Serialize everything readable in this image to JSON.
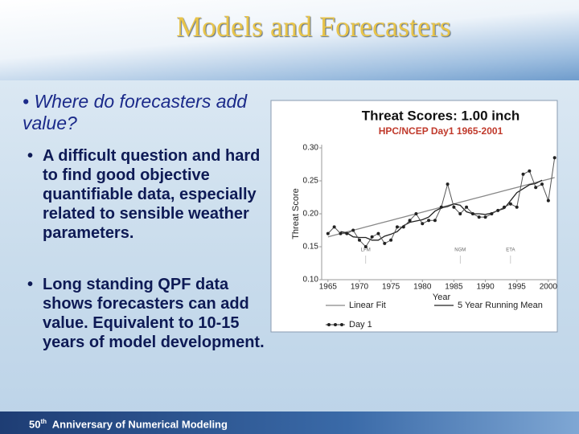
{
  "title": "Models and Forecasters",
  "question": "Where do forecasters add value?",
  "bullets": [
    "A difficult question and hard to find good objective quantifiable data, especially related to sensible weather parameters.",
    "Long standing QPF data shows forecasters can add value. Equivalent to 10-15 years of model development."
  ],
  "footer": {
    "number": "50",
    "suffix": "th",
    "text": "Anniversary of Numerical Modeling"
  },
  "chart_data": {
    "type": "line",
    "title": "Threat Scores: 1.00 inch",
    "subtitle": "HPC/NCEP Day1 1965-2001",
    "x_label": "Year",
    "y_label": "Threat Score",
    "x": [
      1965,
      1966,
      1967,
      1968,
      1969,
      1970,
      1971,
      1972,
      1973,
      1974,
      1975,
      1976,
      1977,
      1978,
      1979,
      1980,
      1981,
      1982,
      1983,
      1984,
      1985,
      1986,
      1987,
      1988,
      1989,
      1990,
      1991,
      1992,
      1993,
      1994,
      1995,
      1996,
      1997,
      1998,
      1999,
      2000,
      2001
    ],
    "series": [
      {
        "name": "Linear Fit",
        "color": "#888888",
        "values": [
          0.165,
          0.1675,
          0.17,
          0.1725,
          0.175,
          0.1775,
          0.18,
          0.1825,
          0.185,
          0.1875,
          0.19,
          0.1925,
          0.195,
          0.1975,
          0.2,
          0.2025,
          0.205,
          0.2075,
          0.21,
          0.2125,
          0.215,
          0.2175,
          0.22,
          0.2225,
          0.225,
          0.2275,
          0.23,
          0.2325,
          0.235,
          0.2375,
          0.24,
          0.2425,
          0.245,
          0.2475,
          0.25,
          0.2525,
          0.255
        ]
      },
      {
        "name": "5 Year Running Mean",
        "color": "#222222",
        "values": [
          null,
          null,
          0.173,
          0.171,
          0.165,
          0.164,
          0.164,
          0.16,
          0.16,
          0.166,
          0.169,
          0.173,
          0.182,
          0.187,
          0.189,
          0.191,
          0.195,
          0.204,
          0.209,
          0.211,
          0.215,
          0.213,
          0.203,
          0.2,
          0.2,
          0.199,
          0.201,
          0.205,
          0.208,
          0.22,
          0.232,
          0.238,
          0.244,
          0.246,
          0.251,
          null,
          null
        ]
      },
      {
        "name": "Day 1",
        "color": "#555555",
        "values": [
          0.17,
          0.18,
          0.17,
          0.17,
          0.175,
          0.16,
          0.15,
          0.165,
          0.17,
          0.155,
          0.16,
          0.18,
          0.18,
          0.19,
          0.2,
          0.185,
          0.19,
          0.19,
          0.21,
          0.245,
          0.21,
          0.2,
          0.21,
          0.2,
          0.195,
          0.195,
          0.2,
          0.205,
          0.21,
          0.215,
          0.21,
          0.26,
          0.265,
          0.24,
          0.245,
          0.22,
          0.285
        ]
      }
    ],
    "xlim": [
      1964,
      2001.5
    ],
    "xticks": [
      1965,
      1970,
      1975,
      1980,
      1985,
      1990,
      1995,
      2000
    ],
    "ylim": [
      0.1,
      0.3
    ],
    "yticks": [
      {
        "value": 0.1,
        "label": "0.10"
      },
      {
        "value": 0.15,
        "label": "0.15"
      },
      {
        "value": 0.2,
        "label": "0.20"
      },
      {
        "value": 0.25,
        "label": "0.25"
      },
      {
        "value": 0.3,
        "label": "0.30"
      }
    ],
    "annotations": [
      {
        "x": 1971,
        "text": "LFM"
      },
      {
        "x": 1986,
        "text": "NGM"
      },
      {
        "x": 1994,
        "text": "ETA"
      }
    ]
  }
}
